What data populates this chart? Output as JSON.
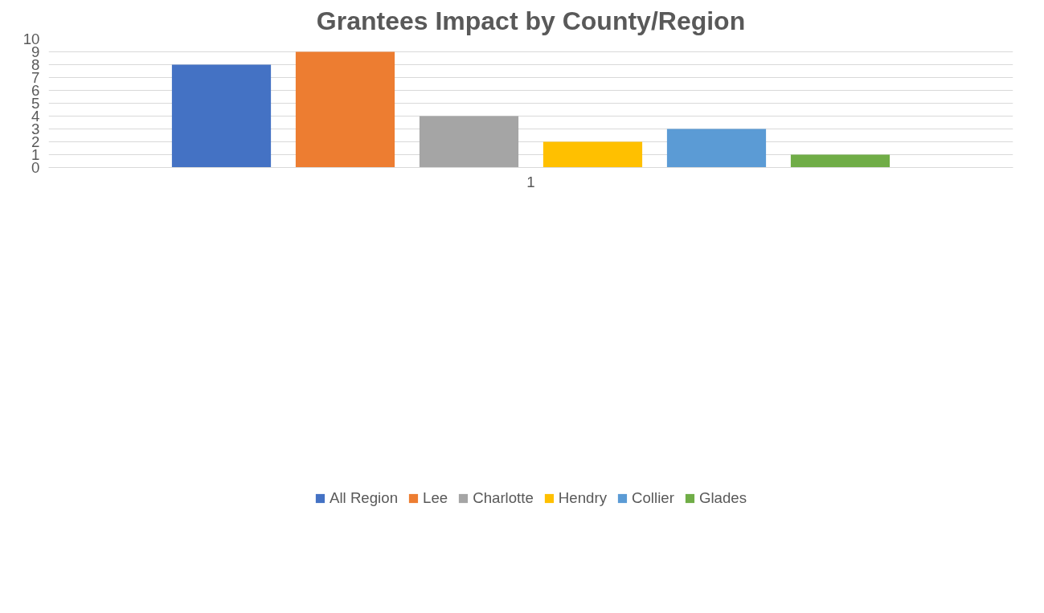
{
  "chart_data": {
    "type": "bar",
    "title": "Grantees Impact by County/Region",
    "categories": [
      "1"
    ],
    "series": [
      {
        "name": "All Region",
        "color": "#4472c4",
        "values": [
          8
        ]
      },
      {
        "name": "Lee",
        "color": "#ed7d31",
        "values": [
          9
        ]
      },
      {
        "name": "Charlotte",
        "color": "#a5a5a5",
        "values": [
          4
        ]
      },
      {
        "name": "Hendry",
        "color": "#ffc000",
        "values": [
          2
        ]
      },
      {
        "name": "Collier",
        "color": "#5b9bd5",
        "values": [
          3
        ]
      },
      {
        "name": "Glades",
        "color": "#70ad47",
        "values": [
          1
        ]
      }
    ],
    "ylim": [
      0,
      10
    ],
    "yticks": [
      0,
      1,
      2,
      3,
      4,
      5,
      6,
      7,
      8,
      9,
      10
    ],
    "grid": "y",
    "legend": "bottom"
  }
}
